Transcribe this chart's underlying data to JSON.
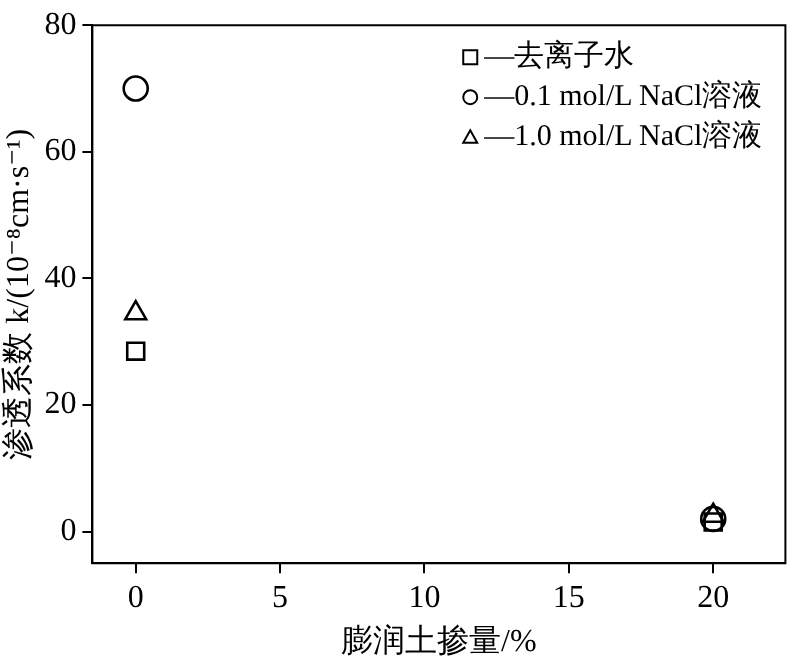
{
  "chart_data": {
    "type": "scatter",
    "xlabel": "膨润土掺量/%",
    "ylabel": "渗透系数 k/(10⁻⁸cm·s⁻¹)",
    "xlim": [
      -1.5,
      22.5
    ],
    "xticks": [
      0,
      5,
      10,
      15,
      20
    ],
    "ylim": [
      -5,
      80
    ],
    "yticks": [
      0,
      20,
      40,
      60,
      80
    ],
    "grid": false,
    "legend": "top right",
    "x": [
      0,
      20
    ],
    "series": [
      {
        "name": "—去离子水",
        "color": "#000000",
        "marker": "square",
        "values": [
          28.5,
          1.5
        ]
      },
      {
        "name": "—0.1 mol/L NaCl溶液",
        "color": "#000000",
        "marker": "circle",
        "values": [
          70,
          2
        ]
      },
      {
        "name": "—1.0 mol/L NaCl溶液",
        "color": "#000000",
        "marker": "triangle",
        "values": [
          34.5,
          2.5
        ]
      }
    ]
  }
}
